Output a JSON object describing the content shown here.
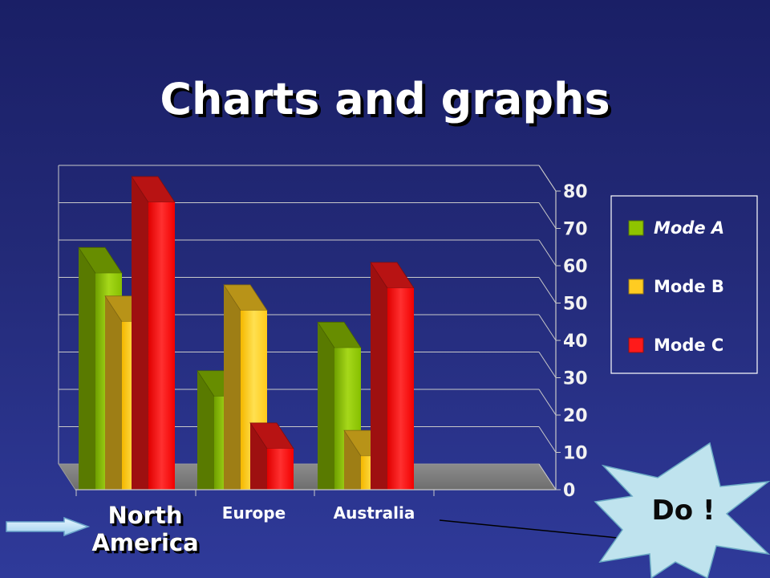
{
  "slide": {
    "title": "Charts and graphs",
    "callout_text": "Do !"
  },
  "chart_data": {
    "type": "bar",
    "categories": [
      "North America",
      "Europe",
      "Australia"
    ],
    "series": [
      {
        "name": "Mode A",
        "values": [
          58,
          25,
          38
        ],
        "color": "#8fc400"
      },
      {
        "name": "Mode B",
        "values": [
          45,
          48,
          9
        ],
        "color": "#ffcc22"
      },
      {
        "name": "Mode C",
        "values": [
          77,
          11,
          54
        ],
        "color": "#ff1a1a"
      }
    ],
    "ylim": [
      0,
      80
    ],
    "yticks": [
      0,
      10,
      20,
      30,
      40,
      50,
      60,
      70,
      80
    ],
    "grid": true,
    "legend": "right",
    "style": "3d",
    "highlighted_category": "North America",
    "title": "",
    "xlabel": "",
    "ylabel": ""
  }
}
